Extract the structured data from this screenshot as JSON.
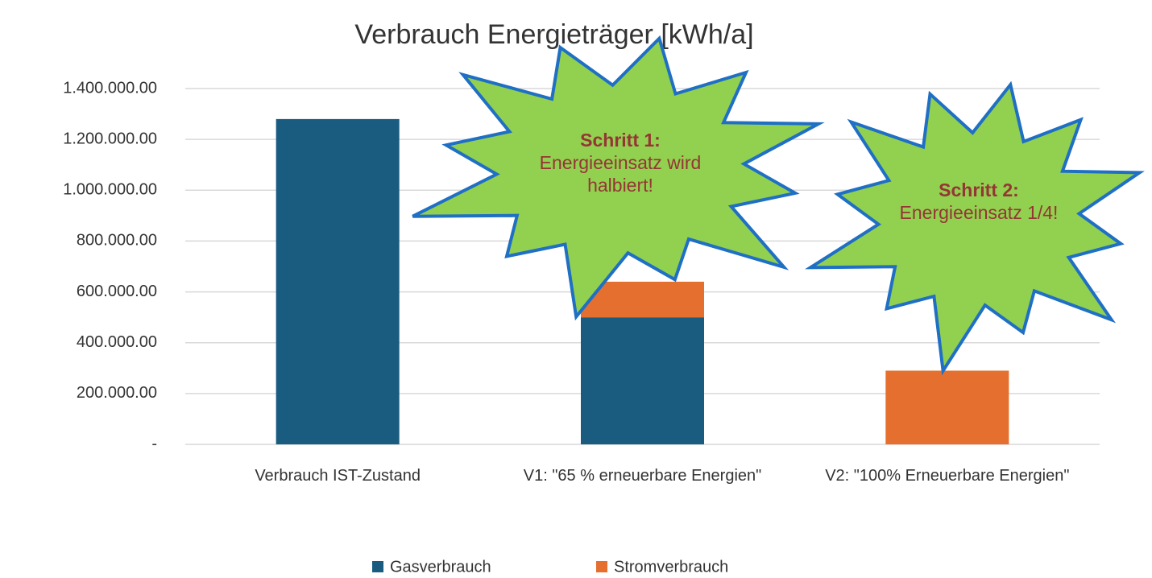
{
  "chart_data": {
    "type": "bar",
    "stacked": true,
    "title": "Verbrauch Energieträger [kWh/a]",
    "categories": [
      "Verbrauch IST-Zustand",
      "V1: \"65 % erneuerbare Energien\"",
      "V2: \"100% Erneuerbare Energien\""
    ],
    "series": [
      {
        "name": "Gasverbrauch",
        "color": "#1a5c80",
        "values": [
          1280000,
          500000,
          0
        ]
      },
      {
        "name": "Stromverbrauch",
        "color": "#e56f2e",
        "values": [
          0,
          140000,
          290000
        ]
      }
    ],
    "ylim": [
      0,
      1400000
    ],
    "yticks": [
      {
        "value": 0,
        "label": "-"
      },
      {
        "value": 200000,
        "label": "200.000.00"
      },
      {
        "value": 400000,
        "label": "400.000.00"
      },
      {
        "value": 600000,
        "label": "600.000.00"
      },
      {
        "value": 800000,
        "label": "800.000.00"
      },
      {
        "value": 1000000,
        "label": "1.000.000.00"
      },
      {
        "value": 1200000,
        "label": "1.200.000.00"
      },
      {
        "value": 1400000,
        "label": "1.400.000.00"
      }
    ],
    "grid": true,
    "legend": "bottom",
    "annotations": [
      {
        "title": "Schritt 1:",
        "text": "Energieeinsatz wird halbiert!"
      },
      {
        "title": "Schritt 2:",
        "text": "Energieeinsatz 1/4!"
      }
    ]
  }
}
